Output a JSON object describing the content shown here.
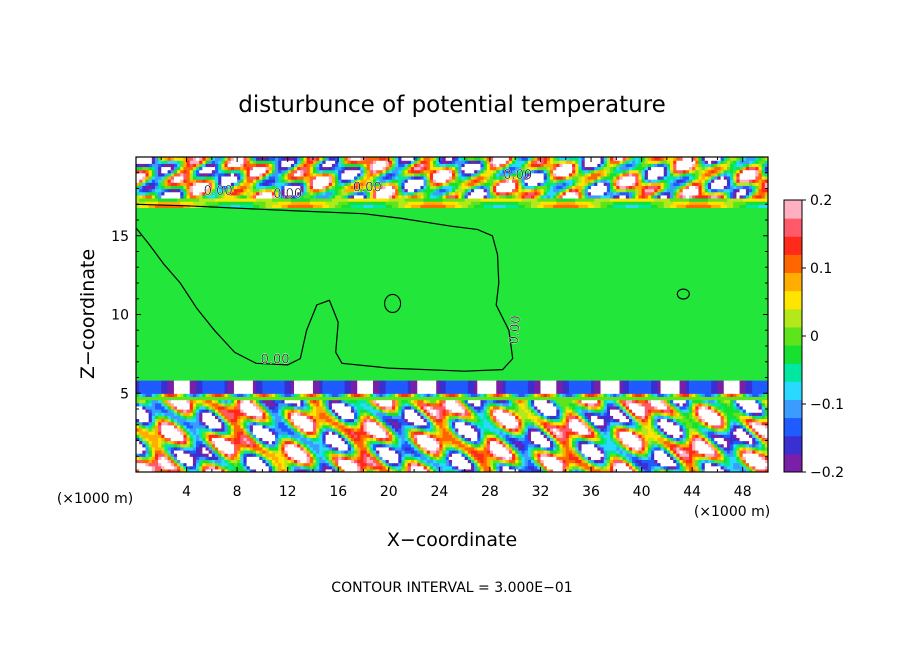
{
  "chart_data": {
    "type": "heatmap",
    "title": "disturbunce of potential temperature",
    "xlabel": "X−coordinate",
    "ylabel": "Z−coordinate",
    "x_unit_left": "(×1000 m)",
    "x_unit_right": "(×1000 m)",
    "xlim": [
      0,
      50
    ],
    "ylim": [
      0,
      20
    ],
    "x_ticks": [
      4,
      8,
      12,
      16,
      20,
      24,
      28,
      32,
      36,
      40,
      44,
      48
    ],
    "y_ticks": [
      5,
      10,
      15
    ],
    "contour_interval_label": "CONTOUR INTERVAL = 3.000E−01",
    "contour_labels": [
      "0.00",
      "0.00",
      "0.00",
      "0.00",
      "0.00",
      "0.00"
    ],
    "colorbar": {
      "min": -0.2,
      "max": 0.2,
      "tick_values": [
        0.2,
        0.1,
        0,
        -0.1,
        -0.2
      ],
      "tick_labels": [
        "0.2",
        "0.1",
        "0",
        "−0.1",
        "−0.2"
      ],
      "colors": [
        "#7a1fa8",
        "#3a2fd0",
        "#1f5bff",
        "#3a9cff",
        "#29d9ff",
        "#00e8a0",
        "#16e030",
        "#5ee41a",
        "#b4e81a",
        "#ffe400",
        "#ffae00",
        "#ff6600",
        "#ff2a1a",
        "#ff5a6a",
        "#ffb0c0"
      ]
    },
    "background_color": "#22e63a",
    "grid": false
  }
}
